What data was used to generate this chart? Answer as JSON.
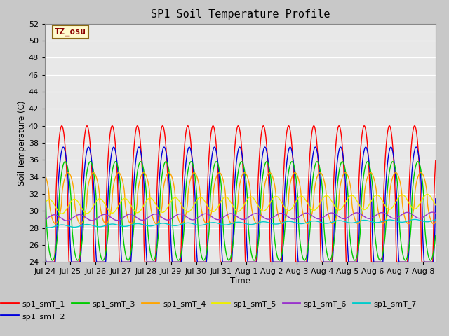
{
  "title": "SP1 Soil Temperature Profile",
  "xlabel": "Time",
  "ylabel": "Soil Temperature (C)",
  "ylim": [
    24,
    52
  ],
  "yticks": [
    24,
    26,
    28,
    30,
    32,
    34,
    36,
    38,
    40,
    42,
    44,
    46,
    48,
    50,
    52
  ],
  "annotation_text": "TZ_osu",
  "annotation_color": "#8B0000",
  "annotation_bg": "#FFFACD",
  "annotation_border": "#8B6914",
  "colors": {
    "sp1_smT_1": "#FF0000",
    "sp1_smT_2": "#0000DD",
    "sp1_smT_3": "#00CC00",
    "sp1_smT_4": "#FFA500",
    "sp1_smT_5": "#EEEE00",
    "sp1_smT_6": "#9933CC",
    "sp1_smT_7": "#00CCCC"
  },
  "fig_bg": "#C8C8C8",
  "plot_bg": "#E8E8E8",
  "grid_color": "#FFFFFF",
  "xtick_labels": [
    "Jul 24",
    "Jul 25",
    "Jul 26",
    "Jul 27",
    "Jul 28",
    "Jul 29",
    "Jul 30",
    "Jul 31",
    "Aug 1",
    "Aug 2",
    "Aug 3",
    "Aug 4",
    "Aug 5",
    "Aug 6",
    "Aug 7",
    "Aug 8"
  ],
  "linewidth": 1.0
}
